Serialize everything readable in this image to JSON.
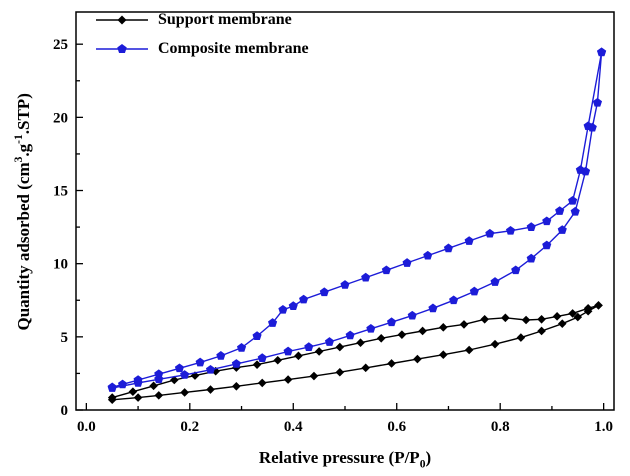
{
  "figure": {
    "background": "#ffffff",
    "frame_color": "#000000",
    "xlabel": {
      "prefix": "Relative pressure (P/P",
      "sub": "0",
      "suffix": ")"
    },
    "ylabel": {
      "prefix": "Quantity adsorbed (cm",
      "sup1": "3",
      "mid": ".g",
      "sup2": "-1",
      "suffix": ".STP)"
    }
  },
  "chart_data": {
    "type": "line",
    "title": "",
    "xlabel": "Relative pressure (P/P0)",
    "ylabel": "Quantity adsorbed (cm3.g-1.STP)",
    "xlim": [
      -0.02,
      1.02
    ],
    "ylim": [
      0,
      27.2
    ],
    "xticks": [
      "0.0",
      "0.2",
      "0.4",
      "0.6",
      "0.8",
      "1.0"
    ],
    "xtick_values": [
      0.0,
      0.2,
      0.4,
      0.6,
      0.8,
      1.0
    ],
    "yticks": [
      "0",
      "5",
      "10",
      "15",
      "20",
      "25"
    ],
    "ytick_values": [
      0,
      5,
      10,
      15,
      20,
      25
    ],
    "x_minor_step": 0.1,
    "y_minor_step": 2.5,
    "grid": false,
    "legend_position": "top-left",
    "series": [
      {
        "name": "Support membrane",
        "color": "#000000",
        "marker": "diamond",
        "branches": {
          "adsorption": [
            [
              0.05,
              0.7
            ],
            [
              0.1,
              0.85
            ],
            [
              0.14,
              1.0
            ],
            [
              0.19,
              1.2
            ],
            [
              0.24,
              1.4
            ],
            [
              0.29,
              1.62
            ],
            [
              0.34,
              1.85
            ],
            [
              0.39,
              2.08
            ],
            [
              0.44,
              2.32
            ],
            [
              0.49,
              2.58
            ],
            [
              0.54,
              2.88
            ],
            [
              0.59,
              3.18
            ],
            [
              0.64,
              3.48
            ],
            [
              0.69,
              3.78
            ],
            [
              0.74,
              4.1
            ],
            [
              0.79,
              4.5
            ],
            [
              0.84,
              4.95
            ],
            [
              0.88,
              5.4
            ],
            [
              0.92,
              5.9
            ],
            [
              0.95,
              6.35
            ],
            [
              0.97,
              6.75
            ],
            [
              0.99,
              7.15
            ]
          ],
          "desorption": [
            [
              0.99,
              7.15
            ],
            [
              0.97,
              6.95
            ],
            [
              0.94,
              6.6
            ],
            [
              0.91,
              6.4
            ],
            [
              0.88,
              6.2
            ],
            [
              0.85,
              6.15
            ],
            [
              0.81,
              6.3
            ],
            [
              0.77,
              6.2
            ],
            [
              0.73,
              5.85
            ],
            [
              0.69,
              5.65
            ],
            [
              0.65,
              5.4
            ],
            [
              0.61,
              5.15
            ],
            [
              0.57,
              4.9
            ],
            [
              0.53,
              4.6
            ],
            [
              0.49,
              4.3
            ],
            [
              0.45,
              4.0
            ],
            [
              0.41,
              3.7
            ],
            [
              0.37,
              3.4
            ],
            [
              0.33,
              3.1
            ],
            [
              0.29,
              2.9
            ],
            [
              0.25,
              2.65
            ],
            [
              0.21,
              2.35
            ],
            [
              0.17,
              2.05
            ],
            [
              0.13,
              1.65
            ],
            [
              0.09,
              1.25
            ],
            [
              0.05,
              0.85
            ]
          ]
        }
      },
      {
        "name": "Composite membrane",
        "color": "#1c1cd8",
        "marker": "pentagon",
        "branches": {
          "adsorption": [
            [
              0.05,
              1.5
            ],
            [
              0.1,
              1.85
            ],
            [
              0.14,
              2.1
            ],
            [
              0.19,
              2.4
            ],
            [
              0.24,
              2.75
            ],
            [
              0.29,
              3.15
            ],
            [
              0.34,
              3.55
            ],
            [
              0.39,
              4.0
            ],
            [
              0.43,
              4.3
            ],
            [
              0.47,
              4.65
            ],
            [
              0.51,
              5.1
            ],
            [
              0.55,
              5.55
            ],
            [
              0.59,
              6.0
            ],
            [
              0.63,
              6.45
            ],
            [
              0.67,
              6.95
            ],
            [
              0.71,
              7.5
            ],
            [
              0.75,
              8.1
            ],
            [
              0.79,
              8.75
            ],
            [
              0.83,
              9.55
            ],
            [
              0.86,
              10.35
            ],
            [
              0.89,
              11.25
            ],
            [
              0.92,
              12.3
            ],
            [
              0.945,
              13.55
            ],
            [
              0.965,
              16.3
            ],
            [
              0.978,
              19.3
            ],
            [
              0.988,
              21.0
            ],
            [
              0.996,
              24.45
            ]
          ],
          "desorption": [
            [
              0.996,
              24.45
            ],
            [
              0.97,
              19.4
            ],
            [
              0.955,
              16.4
            ],
            [
              0.94,
              14.3
            ],
            [
              0.915,
              13.6
            ],
            [
              0.89,
              12.9
            ],
            [
              0.86,
              12.5
            ],
            [
              0.82,
              12.25
            ],
            [
              0.78,
              12.05
            ],
            [
              0.74,
              11.55
            ],
            [
              0.7,
              11.05
            ],
            [
              0.66,
              10.55
            ],
            [
              0.62,
              10.05
            ],
            [
              0.58,
              9.55
            ],
            [
              0.54,
              9.05
            ],
            [
              0.5,
              8.55
            ],
            [
              0.46,
              8.05
            ],
            [
              0.42,
              7.55
            ],
            [
              0.4,
              7.1
            ],
            [
              0.38,
              6.85
            ],
            [
              0.36,
              5.95
            ],
            [
              0.33,
              5.05
            ],
            [
              0.3,
              4.25
            ],
            [
              0.26,
              3.7
            ],
            [
              0.22,
              3.25
            ],
            [
              0.18,
              2.85
            ],
            [
              0.14,
              2.45
            ],
            [
              0.1,
              2.05
            ],
            [
              0.07,
              1.75
            ],
            [
              0.05,
              1.55
            ]
          ]
        }
      }
    ]
  }
}
